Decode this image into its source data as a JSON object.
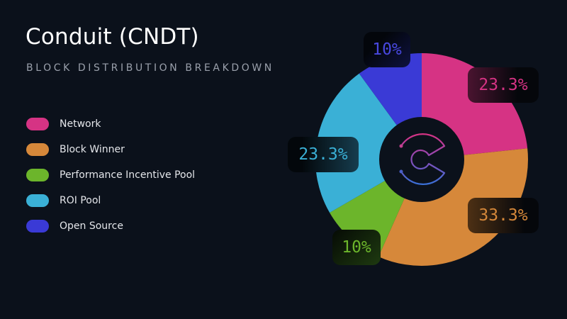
{
  "header": {
    "title": "Conduit (CNDT)",
    "subtitle": "BLOCK DISTRIBUTION BREAKDOWN"
  },
  "legend": [
    {
      "label": "Network",
      "color": "#d63384"
    },
    {
      "label": "Block Winner",
      "color": "#d6883a"
    },
    {
      "label": "Performance Incentive Pool",
      "color": "#6cb52b"
    },
    {
      "label": "ROI Pool",
      "color": "#3ab0d6"
    },
    {
      "label": "Open Source",
      "color": "#3a3ad6"
    }
  ],
  "labels": {
    "network": "23.3%",
    "block_winner": "33.3%",
    "performance": "10%",
    "roi": "23.3%",
    "open_source": "10%"
  },
  "logo": {
    "name": "conduit-logo-icon"
  },
  "chart_data": {
    "type": "pie",
    "variant": "donut",
    "title": "Conduit (CNDT)",
    "subtitle": "BLOCK DISTRIBUTION BREAKDOWN",
    "categories": [
      "Network",
      "Block Winner",
      "Performance Incentive Pool",
      "ROI Pool",
      "Open Source"
    ],
    "values": [
      23.3,
      33.3,
      10,
      23.3,
      10
    ],
    "colors": [
      "#d63384",
      "#d6883a",
      "#6cb52b",
      "#3ab0d6",
      "#3a3ad6"
    ],
    "data_labels": [
      "23.3%",
      "33.3%",
      "10%",
      "23.3%",
      "10%"
    ],
    "start_angle_deg": 0,
    "direction": "clockwise",
    "legend_position": "left"
  }
}
